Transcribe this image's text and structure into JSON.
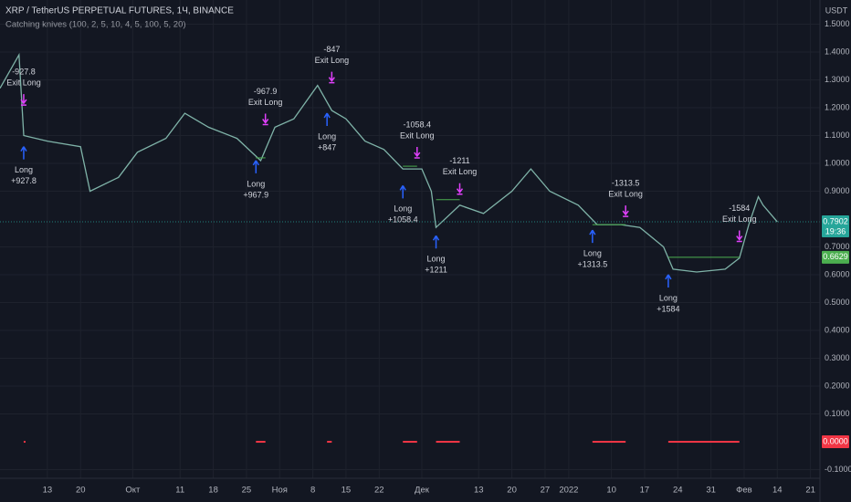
{
  "chart_data": {
    "type": "line",
    "title": "XRP / TetherUS PERPETUAL FUTURES, 1Ч, BINANCE",
    "subtitle": "Catching knives (100, 2, 5, 10, 4, 5, 100, 5, 20)",
    "currency": "USDT",
    "color": "#7fb3a8",
    "grid": true,
    "x": [
      "2021-09-03",
      "2021-09-07",
      "2021-09-08",
      "2021-09-13",
      "2021-09-20",
      "2021-09-22",
      "2021-09-28",
      "2021-10-02",
      "2021-10-08",
      "2021-10-12",
      "2021-10-17",
      "2021-10-23",
      "2021-10-28",
      "2021-10-31",
      "2021-11-04",
      "2021-11-09",
      "2021-11-12",
      "2021-11-15",
      "2021-11-19",
      "2021-11-23",
      "2021-11-27",
      "2021-12-01",
      "2021-12-03",
      "2021-12-04",
      "2021-12-09",
      "2021-12-14",
      "2021-12-20",
      "2021-12-24",
      "2021-12-28",
      "2022-01-03",
      "2022-01-07",
      "2022-01-12",
      "2022-01-16",
      "2022-01-21",
      "2022-01-23",
      "2022-01-28",
      "2022-02-03",
      "2022-02-06",
      "2022-02-08",
      "2022-02-10",
      "2022-02-11",
      "2022-02-14"
    ],
    "values": [
      1.27,
      1.39,
      1.1,
      1.08,
      1.06,
      0.9,
      0.95,
      1.04,
      1.09,
      1.18,
      1.13,
      1.09,
      1.01,
      1.13,
      1.16,
      1.28,
      1.19,
      1.16,
      1.08,
      1.05,
      0.98,
      0.98,
      0.9,
      0.77,
      0.85,
      0.82,
      0.9,
      0.98,
      0.9,
      0.85,
      0.78,
      0.78,
      0.77,
      0.7,
      0.62,
      0.61,
      0.62,
      0.66,
      0.78,
      0.88,
      0.85,
      0.79
    ],
    "xlim": [
      "2021-09-03",
      "2022-02-23"
    ],
    "ylim": [
      -0.131,
      1.587
    ],
    "xticks": [
      {
        "value": "2021-09-13",
        "label": "13"
      },
      {
        "value": "2021-09-20",
        "label": "20"
      },
      {
        "value": "2021-10-01",
        "label": "Окт"
      },
      {
        "value": "2021-10-11",
        "label": "11"
      },
      {
        "value": "2021-10-18",
        "label": "18"
      },
      {
        "value": "2021-10-25",
        "label": "25"
      },
      {
        "value": "2021-11-01",
        "label": "Ноя"
      },
      {
        "value": "2021-11-08",
        "label": "8"
      },
      {
        "value": "2021-11-15",
        "label": "15"
      },
      {
        "value": "2021-11-22",
        "label": "22"
      },
      {
        "value": "2021-12-01",
        "label": "Дек"
      },
      {
        "value": "2021-12-13",
        "label": "13"
      },
      {
        "value": "2021-12-20",
        "label": "20"
      },
      {
        "value": "2021-12-27",
        "label": "27"
      },
      {
        "value": "2022-01-01",
        "label": "2022"
      },
      {
        "value": "2022-01-10",
        "label": "10"
      },
      {
        "value": "2022-01-17",
        "label": "17"
      },
      {
        "value": "2022-01-24",
        "label": "24"
      },
      {
        "value": "2022-01-31",
        "label": "31"
      },
      {
        "value": "2022-02-07",
        "label": "Фев"
      },
      {
        "value": "2022-02-14",
        "label": "14"
      },
      {
        "value": "2022-02-21",
        "label": "21"
      }
    ],
    "yticks": [
      {
        "value": 1.5,
        "label": "1.5000"
      },
      {
        "value": 1.4,
        "label": "1.4000"
      },
      {
        "value": 1.3,
        "label": "1.3000"
      },
      {
        "value": 1.2,
        "label": "1.2000"
      },
      {
        "value": 1.1,
        "label": "1.1000"
      },
      {
        "value": 1.0,
        "label": "1.0000"
      },
      {
        "value": 0.9,
        "label": "0.9000"
      },
      {
        "value": 0.7,
        "label": "0.7000"
      },
      {
        "value": 0.6,
        "label": "0.6000"
      },
      {
        "value": 0.5,
        "label": "0.5000"
      },
      {
        "value": 0.4,
        "label": "0.4000"
      },
      {
        "value": 0.3,
        "label": "0.3000"
      },
      {
        "value": 0.2,
        "label": "0.2000"
      },
      {
        "value": 0.1,
        "label": "0.1000"
      },
      {
        "value": -0.1,
        "label": "-0.1000"
      }
    ],
    "last_price": {
      "value": 0.7902,
      "label": "0.7902",
      "countdown": "19:36",
      "color": "#26a69a"
    },
    "current_level": {
      "value": 0.6629,
      "label": "0.6629",
      "color": "#4caf50"
    },
    "trades": {
      "entry_label": "Long",
      "exit_label": "Exit Long",
      "entry_color": "#2962ff",
      "exit_color": "#e040fb",
      "level_color": "#4caf50",
      "entry_dates": [
        "2021-09-08",
        "2021-10-27",
        "2021-11-11",
        "2021-11-27",
        "2021-12-04",
        "2022-01-06",
        "2022-01-22"
      ],
      "exit_dates": [
        "2021-09-08",
        "2021-10-29",
        "2021-11-12",
        "2021-11-30",
        "2021-12-09",
        "2022-01-13",
        "2022-02-06"
      ],
      "entry_prices": [
        1.08,
        1.03,
        1.2,
        0.94,
        0.76,
        0.78,
        0.62
      ],
      "exit_prices": [
        1.19,
        1.12,
        1.27,
        1.0,
        0.87,
        0.79,
        0.7
      ],
      "levels": [
        null,
        1.02,
        null,
        0.99,
        0.87,
        0.78,
        null
      ],
      "entry_texts": [
        "+927.8",
        "+967.9",
        "+847",
        "+1058.4",
        "+1211",
        "+1313.5",
        "+1584"
      ],
      "exit_texts": [
        "-927.8",
        "-967.9",
        "-847",
        "-1058.4",
        "-1211",
        "-1313.5",
        "-1584"
      ]
    },
    "indicator": {
      "value": 0,
      "label": "0.0000",
      "color": "#f23645"
    }
  }
}
